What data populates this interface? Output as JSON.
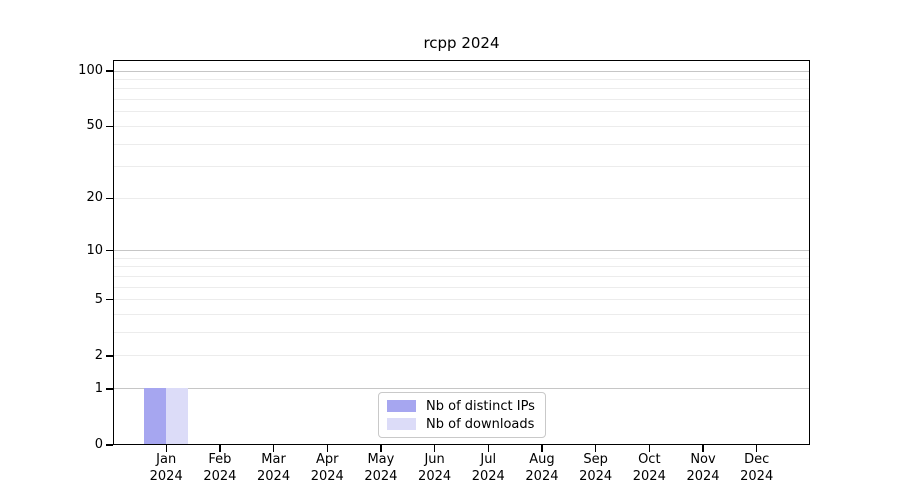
{
  "chart_data": {
    "type": "bar",
    "title": "rcpp 2024",
    "categories": [
      "Jan",
      "Feb",
      "Mar",
      "Apr",
      "May",
      "Jun",
      "Jul",
      "Aug",
      "Sep",
      "Oct",
      "Nov",
      "Dec"
    ],
    "year_label": "2024",
    "series": [
      {
        "name": "Nb of distinct IPs",
        "color": "#a6a6f0",
        "values": [
          1,
          0,
          0,
          0,
          0,
          0,
          0,
          0,
          0,
          0,
          0,
          0
        ]
      },
      {
        "name": "Nb of downloads",
        "color": "#dcdcf8",
        "values": [
          1,
          0,
          0,
          0,
          0,
          0,
          0,
          0,
          0,
          0,
          0,
          0
        ]
      }
    ],
    "xlabel": "",
    "ylabel": "",
    "yscale": "log10(1+y)",
    "ylim": [
      0,
      115
    ],
    "ytick_labels": [
      "100",
      "50",
      "20",
      "10",
      "5",
      "2",
      "1",
      "0"
    ],
    "ytick_values": [
      100,
      50,
      20,
      10,
      5,
      2,
      1,
      0
    ],
    "minor_grid_values": [
      2,
      3,
      4,
      5,
      6,
      7,
      8,
      9,
      20,
      30,
      40,
      50,
      60,
      70,
      80,
      90
    ],
    "major_grid_values": [
      1,
      10,
      100
    ],
    "grid": "horizontal",
    "legend_position": "lower-center-inside",
    "colors": {
      "major_grid": "#c6c6c6",
      "minor_grid": "#ececec",
      "axis": "#000000",
      "background": "#ffffff"
    }
  }
}
